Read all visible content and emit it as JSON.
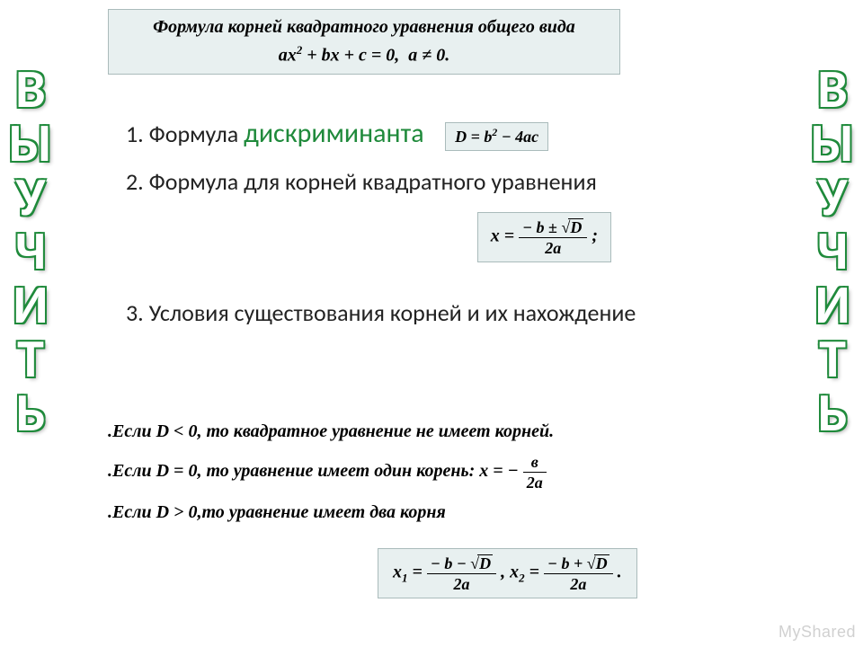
{
  "side_word": "ВЫУЧИТЬ",
  "side_color_fill": "#ffffff",
  "side_color_outline": "#1f8a3b",
  "top_box": {
    "title": "Формула корней квадратного уравнения общего вида",
    "equation_html": "ax<sup>2</sup> + bx + c = 0,&nbsp;&nbsp;a ≠ 0."
  },
  "items": {
    "i1_prefix": "1.  Формула",
    "i1_green": "дискриминанта",
    "i1_formula_html": "D = b<sup>2</sup> − 4ac",
    "i2": "2. Формула для корней квадратного уравнения",
    "i3": "3. Условия существования корней и их нахождение"
  },
  "roots_formula": {
    "numerator": "− b ± √D",
    "denominator": "2a",
    "suffix": ";"
  },
  "conditions": {
    "c1": ".Если D < 0, то квадратное уравнение не имеет корней.",
    "c2_prefix": ".Если D = 0, то уравнение имеет один корень: x = −",
    "c2_frac_num": "в",
    "c2_frac_den": "2а",
    "c3": ".Если D > 0,то уравнение имеет два корня"
  },
  "final": {
    "x1_label": "x",
    "x1_sub": "1",
    "x1_num": "− b − √D",
    "x1_den": "2a",
    "x2_label": "x",
    "x2_sub": "2",
    "x2_num": "− b + √D",
    "x2_den": "2a"
  },
  "watermark": "MyShared",
  "colors": {
    "box_bg": "#e8f0f0",
    "box_border": "#aabbbb",
    "green": "#1f8a3b",
    "text": "#222222",
    "background": "#ffffff"
  }
}
